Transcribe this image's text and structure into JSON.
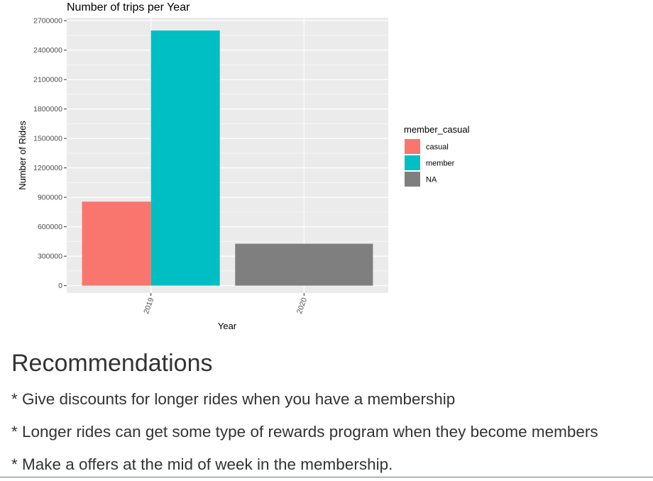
{
  "chart_data": {
    "type": "bar",
    "title": "Number of trips per Year",
    "xlabel": "Year",
    "ylabel": "Number of Rides",
    "categories": [
      "2019",
      "2020"
    ],
    "ylim": [
      -75000,
      2730000
    ],
    "yticks": [
      "0",
      "300000",
      "600000",
      "900000",
      "1200000",
      "1500000",
      "1800000",
      "2100000",
      "2400000",
      "2700000"
    ],
    "grid": true,
    "legend": {
      "title": "member_casual",
      "position": "right"
    },
    "series": [
      {
        "name": "casual",
        "color": "#F8766D",
        "values": [
          856000,
          null
        ]
      },
      {
        "name": "member",
        "color": "#00BFC4",
        "values": [
          2600000,
          null
        ]
      },
      {
        "name": "NA",
        "color": "#7F7F7F",
        "values": [
          null,
          427000
        ]
      }
    ]
  },
  "recommendations": {
    "heading": "Recommendations",
    "items": [
      "* Give discounts for longer rides when you have a membership",
      "* Longer rides can get some type of rewards program when they become members",
      "* Make a offers at the mid of week in the membership."
    ]
  }
}
